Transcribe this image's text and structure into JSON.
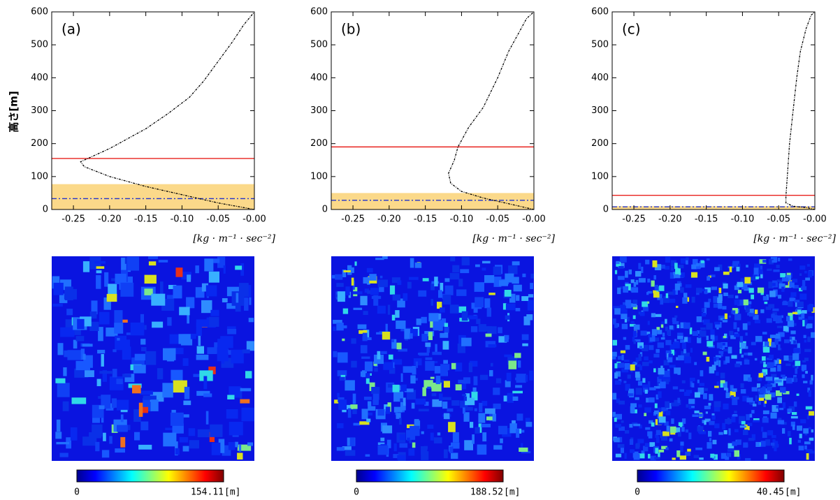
{
  "chart_data": [
    {
      "type": "line",
      "panel_label": "(a)",
      "ylabel": "高さ[m]",
      "xlabel": "[kg · m⁻¹ · sec⁻²]",
      "xlim": [
        -0.28,
        0
      ],
      "ylim": [
        0,
        600
      ],
      "xticks": [
        {
          "value": -0.25,
          "label": "-0.25"
        },
        {
          "value": -0.2,
          "label": "-0.20"
        },
        {
          "value": -0.15,
          "label": "-0.15"
        },
        {
          "value": -0.1,
          "label": "-0.10"
        },
        {
          "value": -0.05,
          "label": "-0.05"
        },
        {
          "value": 0,
          "label": "-0.00"
        }
      ],
      "yticks": [
        0,
        100,
        200,
        300,
        400,
        500,
        600
      ],
      "series": [
        {
          "color": "#000000",
          "x": [
            0,
            -0.05,
            -0.1,
            -0.15,
            -0.2,
            -0.235,
            -0.24,
            -0.2,
            -0.15,
            -0.12,
            -0.09,
            -0.07,
            -0.05,
            -0.03,
            -0.015,
            0
          ],
          "values": [
            0,
            20,
            45,
            70,
            100,
            130,
            145,
            185,
            245,
            290,
            340,
            390,
            450,
            510,
            560,
            600
          ]
        }
      ],
      "hlines": [
        {
          "value": 155,
          "color": "#e8201c"
        },
        {
          "value": 33,
          "color": "#2233cc"
        }
      ],
      "band": [
        0,
        77
      ],
      "band_color": "#fbd98a",
      "colorbar": {
        "min": 0,
        "max": 154.11,
        "unit": "[m]"
      }
    },
    {
      "type": "line",
      "panel_label": "(b)",
      "xlabel": "[kg · m⁻¹ · sec⁻²]",
      "xlim": [
        -0.28,
        0
      ],
      "ylim": [
        0,
        600
      ],
      "xticks": [
        {
          "value": -0.25,
          "label": "-0.25"
        },
        {
          "value": -0.2,
          "label": "-0.20"
        },
        {
          "value": -0.15,
          "label": "-0.15"
        },
        {
          "value": -0.1,
          "label": "-0.10"
        },
        {
          "value": -0.05,
          "label": "-0.05"
        },
        {
          "value": 0,
          "label": "-0.00"
        }
      ],
      "yticks": [
        0,
        100,
        200,
        300,
        400,
        500,
        600
      ],
      "series": [
        {
          "color": "#000000",
          "x": [
            0,
            -0.03,
            -0.07,
            -0.1,
            -0.115,
            -0.118,
            -0.11,
            -0.105,
            -0.09,
            -0.07,
            -0.05,
            -0.035,
            -0.02,
            -0.01,
            0
          ],
          "values": [
            0,
            15,
            35,
            55,
            80,
            110,
            150,
            190,
            250,
            310,
            400,
            480,
            540,
            580,
            600
          ]
        }
      ],
      "hlines": [
        {
          "value": 190,
          "color": "#e8201c"
        },
        {
          "value": 28,
          "color": "#2233cc"
        }
      ],
      "band": [
        0,
        50
      ],
      "band_color": "#fbd98a",
      "colorbar": {
        "min": 0,
        "max": 188.52,
        "unit": "[m]"
      }
    },
    {
      "type": "line",
      "panel_label": "(c)",
      "xlabel": "[kg · m⁻¹ · sec⁻²]",
      "xlim": [
        -0.28,
        0
      ],
      "ylim": [
        0,
        600
      ],
      "xticks": [
        {
          "value": -0.25,
          "label": "-0.25"
        },
        {
          "value": -0.2,
          "label": "-0.20"
        },
        {
          "value": -0.15,
          "label": "-0.15"
        },
        {
          "value": -0.1,
          "label": "-0.10"
        },
        {
          "value": -0.05,
          "label": "-0.05"
        },
        {
          "value": 0,
          "label": "-0.00"
        }
      ],
      "yticks": [
        0,
        100,
        200,
        300,
        400,
        500,
        600
      ],
      "series": [
        {
          "color": "#000000",
          "x": [
            0,
            -0.01,
            -0.03,
            -0.04,
            -0.04,
            -0.038,
            -0.035,
            -0.03,
            -0.025,
            -0.02,
            -0.012,
            -0.005,
            0
          ],
          "values": [
            0,
            5,
            10,
            20,
            40,
            100,
            200,
            300,
            400,
            480,
            550,
            590,
            600
          ]
        }
      ],
      "hlines": [
        {
          "value": 43,
          "color": "#e8201c"
        },
        {
          "value": 8,
          "color": "#2233cc"
        }
      ],
      "band": [
        0,
        10
      ],
      "band_color": "#fbd98a",
      "colorbar": {
        "min": 0,
        "max": 40.45,
        "unit": "[m]"
      }
    }
  ]
}
